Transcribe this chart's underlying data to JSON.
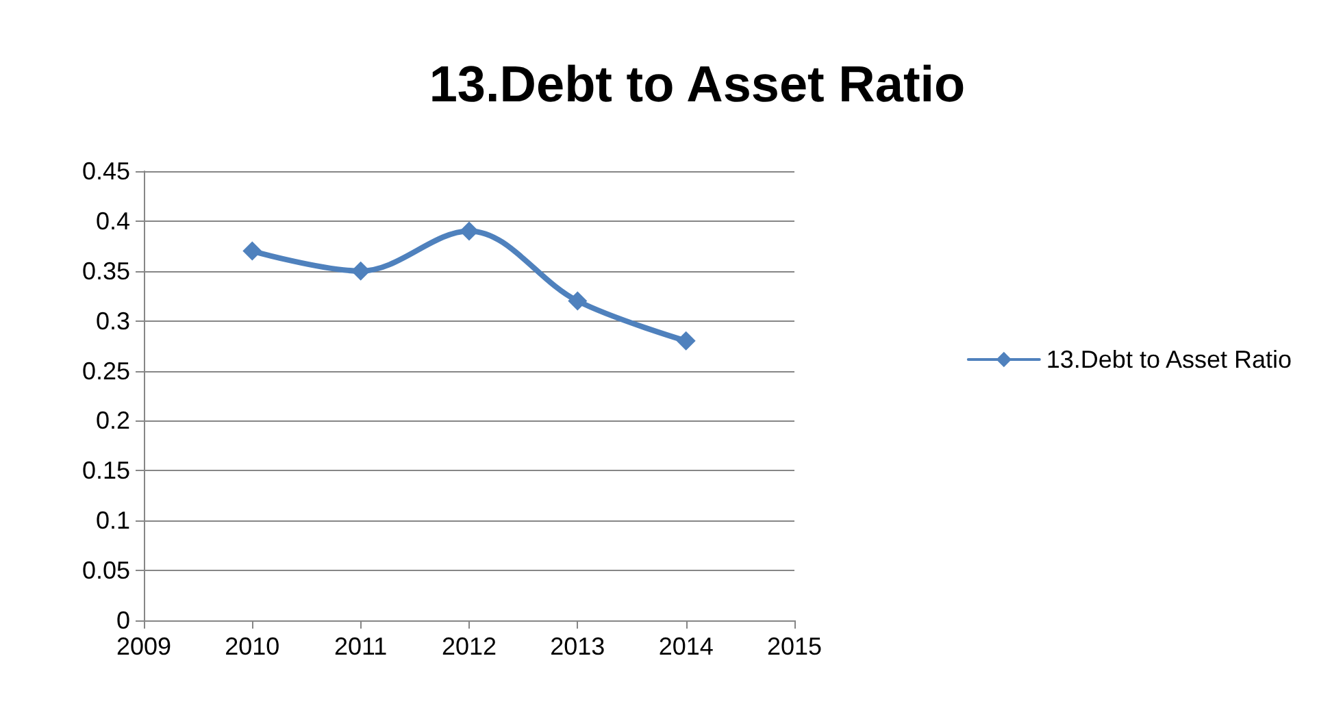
{
  "chart_data": {
    "type": "line",
    "title": "13.Debt to Asset Ratio",
    "x": [
      2010,
      2011,
      2012,
      2013,
      2014
    ],
    "series": [
      {
        "name": "13.Debt to Asset Ratio",
        "color": "#4f81bd",
        "values": [
          0.37,
          0.35,
          0.39,
          0.32,
          0.28
        ]
      }
    ],
    "xlim": [
      2009,
      2015
    ],
    "xticks": [
      2009,
      2010,
      2011,
      2012,
      2013,
      2014,
      2015
    ],
    "ylim": [
      0,
      0.45
    ],
    "yticks": [
      0,
      0.05,
      0.1,
      0.15,
      0.2,
      0.25,
      0.3,
      0.35,
      0.4,
      0.45
    ],
    "grid": "y",
    "legend": "right",
    "marker": "diamond",
    "line_style": "solid"
  }
}
